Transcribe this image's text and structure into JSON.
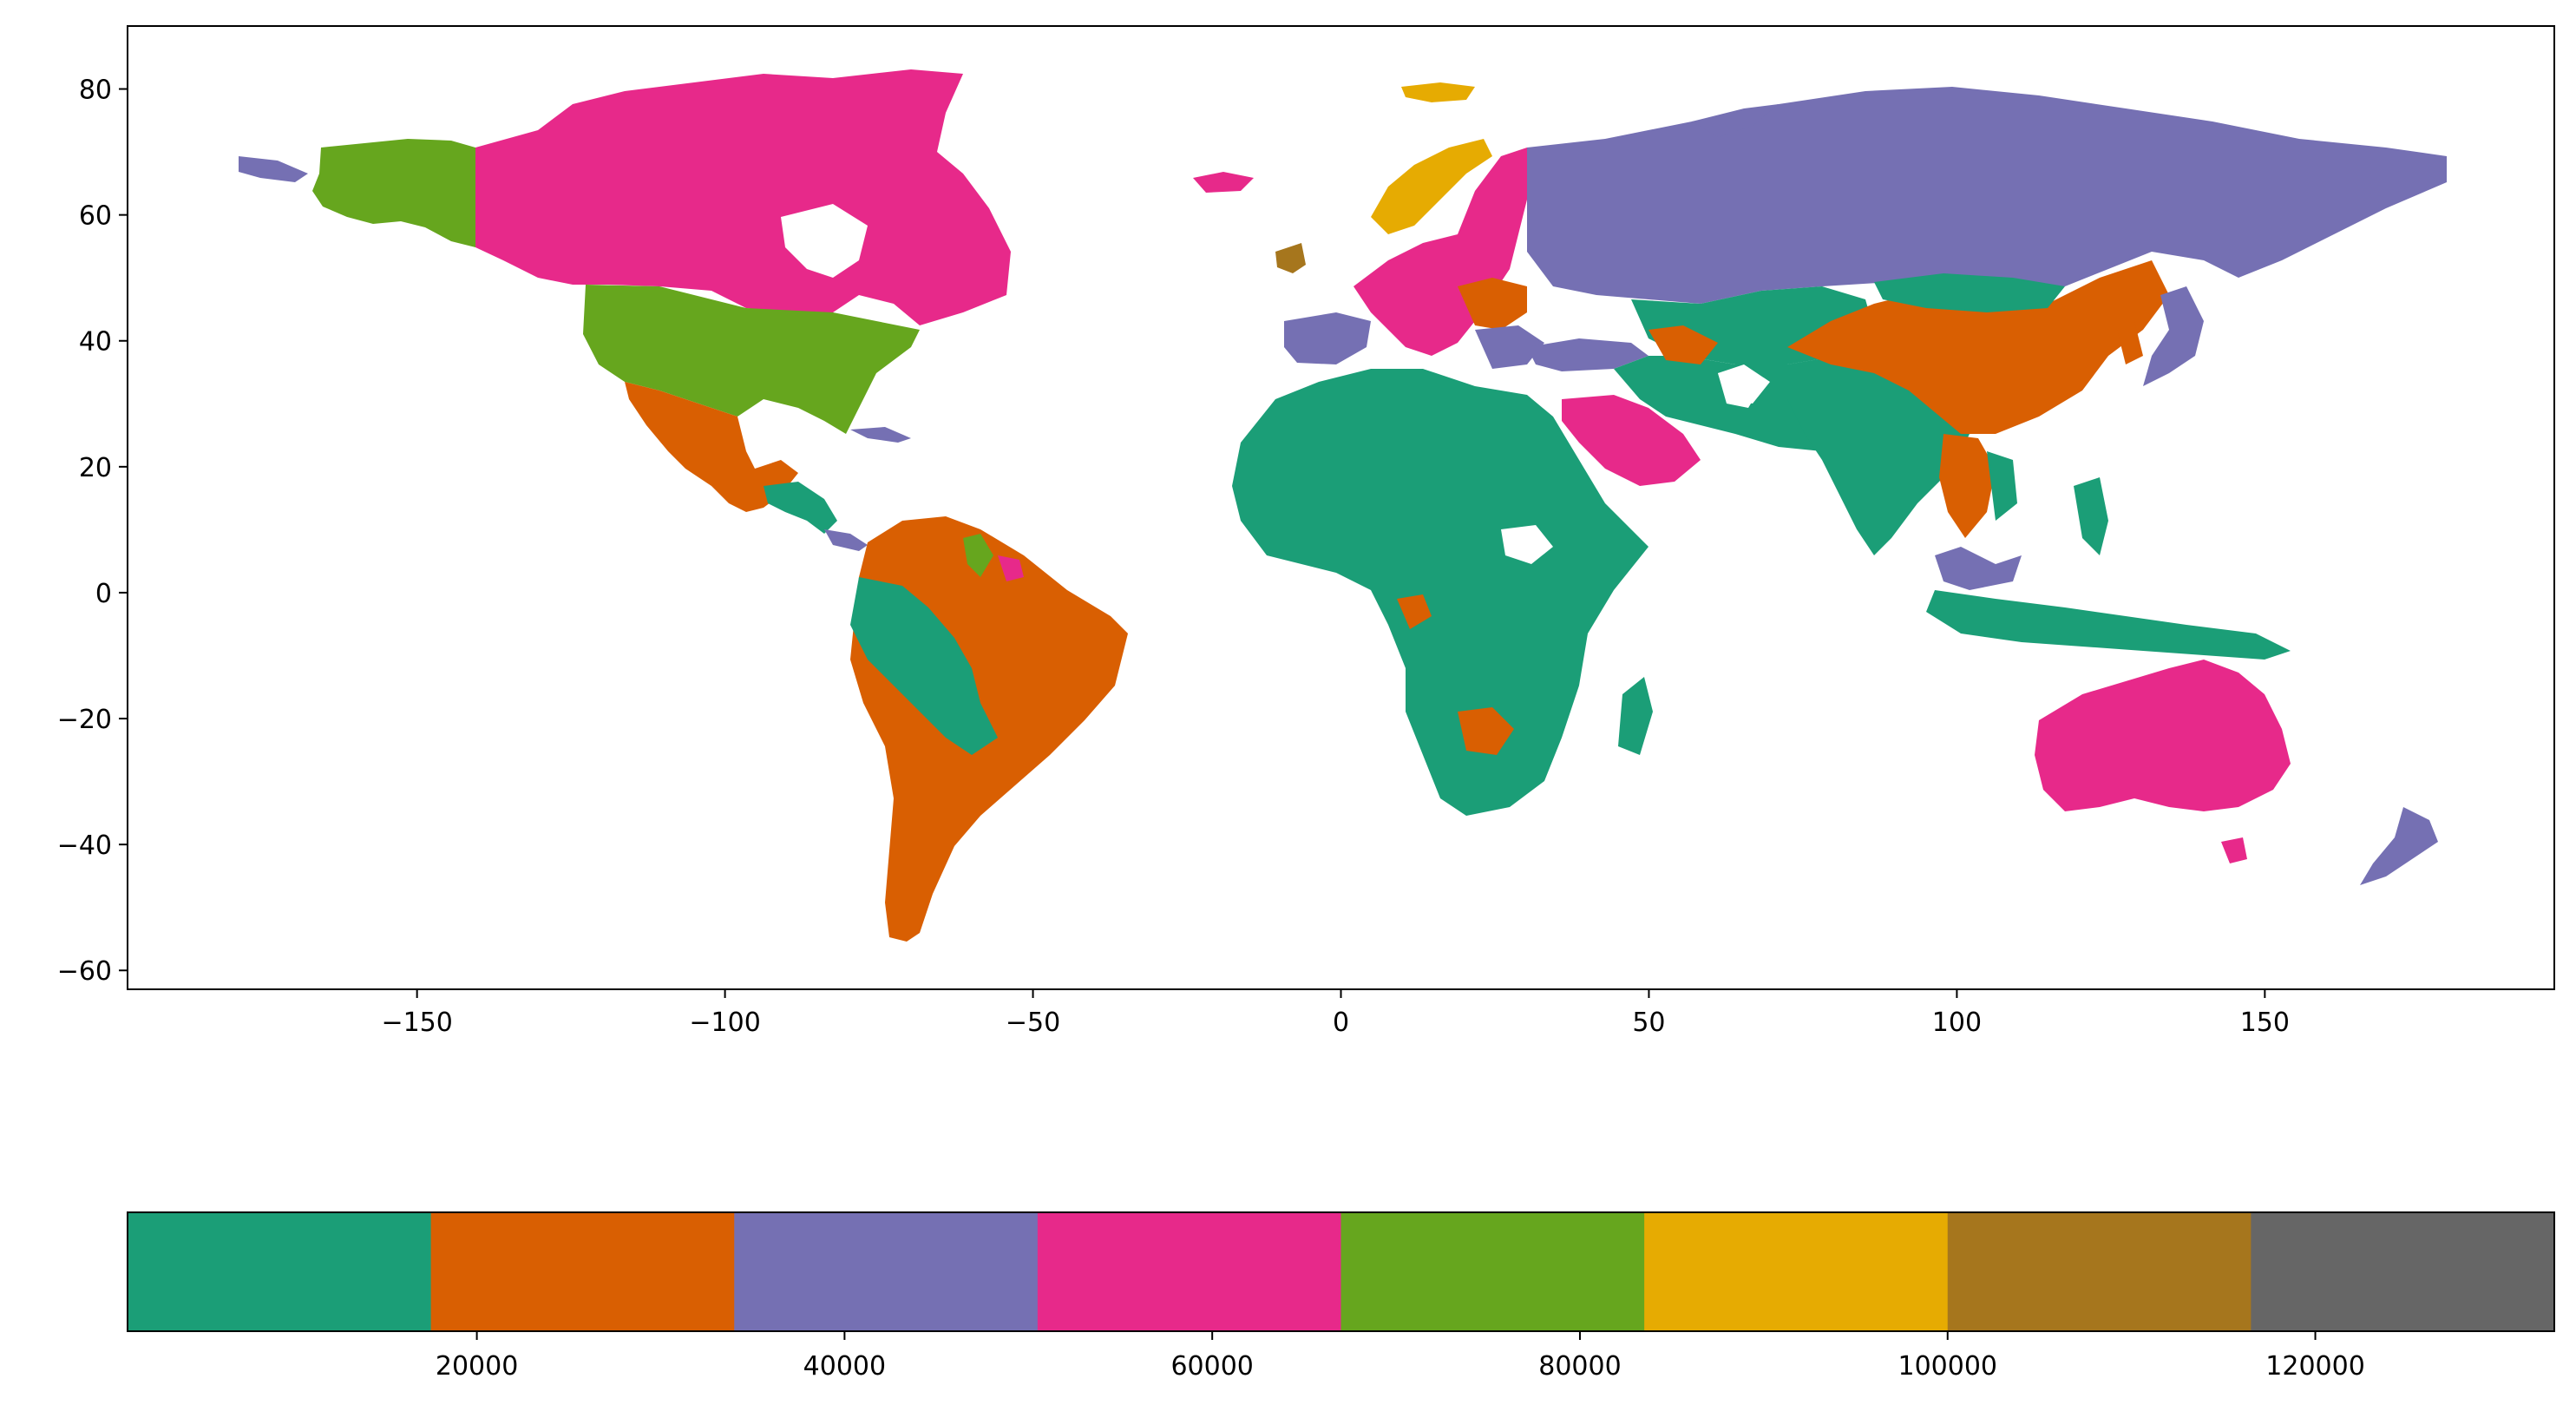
{
  "map": {
    "xaxis": {
      "ticks": [
        -150,
        -100,
        -50,
        0,
        50,
        100,
        150
      ],
      "tick_labels": [
        "−150",
        "−100",
        "−50",
        "0",
        "50",
        "100",
        "150"
      ]
    },
    "yaxis": {
      "ticks": [
        80,
        60,
        40,
        20,
        0,
        -20,
        -40,
        -60
      ],
      "tick_labels": [
        "80",
        "60",
        "40",
        "20",
        "0",
        "−20",
        "−40",
        "−60"
      ]
    },
    "xlim": [
      -197,
      197
    ],
    "ylim": [
      -63,
      90
    ],
    "regions": [
      {
        "name_icon": "north-america-region",
        "color": "#e7298a"
      },
      {
        "name_icon": "usa-region",
        "color": "#66a61e"
      },
      {
        "name_icon": "mexico-central-america-region",
        "color": "#d95f02"
      },
      {
        "name_icon": "south-america-region",
        "color": "#d95f02"
      },
      {
        "name_icon": "africa-region",
        "color": "#1b9e77"
      },
      {
        "name_icon": "europe-region",
        "color": "#e7298a"
      },
      {
        "name_icon": "russia-region",
        "color": "#7570b3"
      },
      {
        "name_icon": "middle-east-region",
        "color": "#1b9e77"
      },
      {
        "name_icon": "china-region",
        "color": "#d95f02"
      },
      {
        "name_icon": "southeast-asia-region",
        "color": "#1b9e77"
      },
      {
        "name_icon": "australia-region",
        "color": "#e7298a"
      },
      {
        "name_icon": "greenland-region",
        "color": "#ffffff"
      }
    ]
  },
  "colorbar": {
    "colors": [
      "#1b9e77",
      "#d95f02",
      "#7570b3",
      "#e7298a",
      "#66a61e",
      "#e6ab02",
      "#a6761d",
      "#666666"
    ],
    "range": [
      1000,
      133000
    ],
    "ticks": [
      20000,
      40000,
      60000,
      80000,
      100000,
      120000
    ],
    "tick_labels": [
      "20000",
      "40000",
      "60000",
      "80000",
      "100000",
      "120000"
    ]
  }
}
